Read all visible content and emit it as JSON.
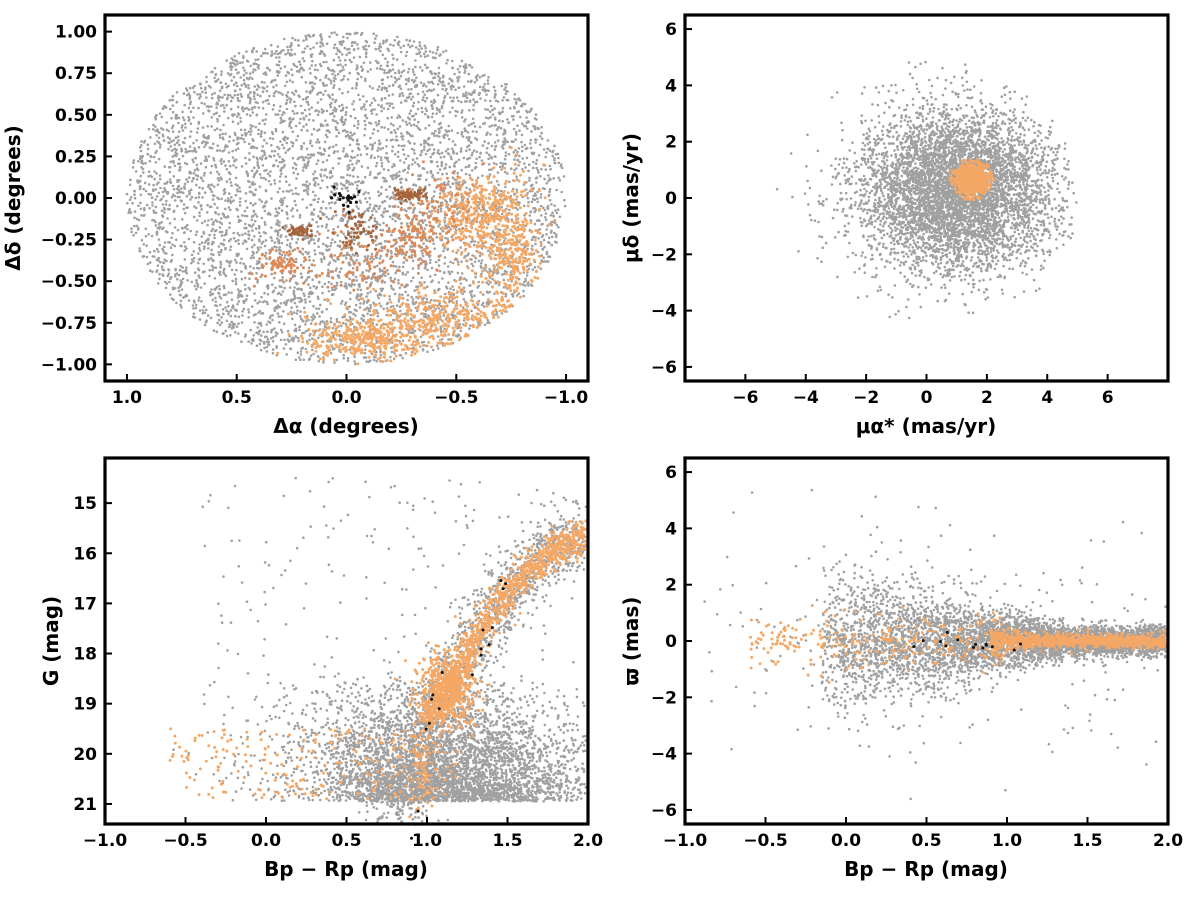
{
  "colors": {
    "field": "#a0a0a0",
    "members_light": "#f5a866",
    "members_mid": "#de8a56",
    "members_dark": "#a6643c",
    "core": "#111111"
  },
  "chart_data": [
    {
      "id": "spatial",
      "type": "scatter",
      "xlabel": "Δα (degrees)",
      "ylabel": "Δδ (degrees)",
      "xlim": [
        1.1,
        -1.1
      ],
      "ylim": [
        -1.1,
        1.1
      ],
      "x_inverted": true,
      "xticks": [
        1.0,
        0.5,
        0.0,
        -0.5,
        -1.0
      ],
      "xtick_labels": [
        "1.0",
        "0.5",
        "0.0",
        "−0.5",
        "−1.0"
      ],
      "yticks": [
        1.0,
        0.75,
        0.5,
        0.25,
        0.0,
        -0.25,
        -0.5,
        -0.75,
        -1.0
      ],
      "ytick_labels": [
        "1.00",
        "0.75",
        "0.50",
        "0.25",
        "0.00",
        "−0.25",
        "−0.50",
        "−0.75",
        "−1.00"
      ],
      "grid": false,
      "series": [
        {
          "role": "field",
          "color": "#a0a0a0",
          "distribution": "uniform disk",
          "center": [
            0,
            0
          ],
          "radius": 1.0
        },
        {
          "role": "members",
          "color": "#f5a866",
          "regions": [
            {
              "center": [
                -0.45,
                -0.72
              ],
              "spread": [
                0.35,
                0.15
              ]
            },
            {
              "center": [
                -0.75,
                -0.3
              ],
              "spread": [
                0.12,
                0.35
              ]
            },
            {
              "center": [
                -0.1,
                -0.85
              ],
              "spread": [
                0.25,
                0.1
              ]
            },
            {
              "center": [
                -0.6,
                -0.1
              ],
              "spread": [
                0.15,
                0.2
              ]
            }
          ]
        },
        {
          "role": "members_mid",
          "color": "#de8a56",
          "regions": [
            {
              "center": [
                -0.4,
                -0.05
              ],
              "spread": [
                0.15,
                0.2
              ]
            },
            {
              "center": [
                -0.05,
                -0.4
              ],
              "spread": [
                0.15,
                0.15
              ]
            },
            {
              "center": [
                0.3,
                -0.4
              ],
              "spread": [
                0.1,
                0.08
              ]
            },
            {
              "center": [
                -0.3,
                -0.25
              ],
              "spread": [
                0.1,
                0.12
              ]
            }
          ]
        },
        {
          "role": "members_dark",
          "color": "#a6643c",
          "regions": [
            {
              "center": [
                -0.05,
                -0.2
              ],
              "spread": [
                0.1,
                0.12
              ]
            },
            {
              "center": [
                0.22,
                -0.2
              ],
              "spread": [
                0.05,
                0.03
              ]
            },
            {
              "center": [
                -0.28,
                0.02
              ],
              "spread": [
                0.05,
                0.03
              ]
            }
          ]
        },
        {
          "role": "core",
          "color": "#111111",
          "center": [
            0.0,
            0.0
          ],
          "spread": [
            0.03,
            0.03
          ]
        }
      ]
    },
    {
      "id": "proper-motion",
      "type": "scatter",
      "xlabel": "μα* (mas/yr)",
      "ylabel": "μδ (mas/yr)",
      "xlim": [
        -8,
        8
      ],
      "ylim": [
        -6.5,
        6.5
      ],
      "xticks": [
        -6,
        -4,
        -2,
        0,
        2,
        4,
        6
      ],
      "xtick_labels": [
        "−6",
        "−4",
        "−2",
        "0",
        "2",
        "4",
        "6"
      ],
      "yticks": [
        6,
        4,
        2,
        0,
        -2,
        -4,
        -6
      ],
      "ytick_labels": [
        "6",
        "4",
        "2",
        "0",
        "−2",
        "−4",
        "−6"
      ],
      "grid": false,
      "series": [
        {
          "role": "field",
          "color": "#a0a0a0",
          "center": [
            1.0,
            0.3
          ],
          "sigma": [
            1.6,
            1.4
          ],
          "clip_radius": 5.0
        },
        {
          "role": "members",
          "color": "#f5a866",
          "center": [
            1.5,
            0.65
          ],
          "sigma": [
            0.3,
            0.3
          ],
          "clip_radius": 0.75
        }
      ]
    },
    {
      "id": "cmd",
      "type": "scatter",
      "xlabel": "Bp − Rp (mag)",
      "ylabel": "G (mag)",
      "xlim": [
        -1.0,
        2.0
      ],
      "ylim": [
        21.4,
        14.1
      ],
      "y_inverted": true,
      "xticks": [
        -1.0,
        -0.5,
        0.0,
        0.5,
        1.0,
        1.5,
        2.0
      ],
      "xtick_labels": [
        "−1.0",
        "−0.5",
        "0.0",
        "0.5",
        "1.0",
        "1.5",
        "2.0"
      ],
      "yticks": [
        21,
        20,
        19,
        18,
        17,
        16,
        15
      ],
      "ytick_labels": [
        "21",
        "20",
        "19",
        "18",
        "17",
        "16",
        "15"
      ],
      "grid": false,
      "sequence": [
        [
          0.95,
          20.9
        ],
        [
          1.0,
          19.3
        ],
        [
          1.1,
          18.8
        ],
        [
          1.25,
          18.0
        ],
        [
          1.4,
          17.2
        ],
        [
          1.55,
          16.6
        ],
        [
          1.75,
          16.0
        ],
        [
          2.0,
          15.6
        ]
      ],
      "series": [
        {
          "role": "field",
          "color": "#a0a0a0"
        },
        {
          "role": "members",
          "color": "#f5a866"
        },
        {
          "role": "core",
          "color": "#111111"
        }
      ]
    },
    {
      "id": "parallax",
      "type": "scatter",
      "xlabel": "Bp − Rp (mag)",
      "ylabel": "ϖ (mas)",
      "xlim": [
        -1.0,
        2.0
      ],
      "ylim": [
        -6.5,
        6.5
      ],
      "xticks": [
        -1.0,
        -0.5,
        0.0,
        0.5,
        1.0,
        1.5,
        2.0
      ],
      "xtick_labels": [
        "−1.0",
        "−0.5",
        "0.0",
        "0.5",
        "1.0",
        "1.5",
        "2.0"
      ],
      "yticks": [
        6,
        4,
        2,
        0,
        -2,
        -4,
        -6
      ],
      "ytick_labels": [
        "6",
        "4",
        "2",
        "0",
        "−2",
        "−4",
        "−6"
      ],
      "grid": false,
      "series": [
        {
          "role": "field",
          "color": "#a0a0a0",
          "center_y": 0.0
        },
        {
          "role": "members",
          "color": "#f5a866",
          "center_y": 0.0
        },
        {
          "role": "core",
          "color": "#111111",
          "center_y": 0.0
        }
      ]
    }
  ]
}
